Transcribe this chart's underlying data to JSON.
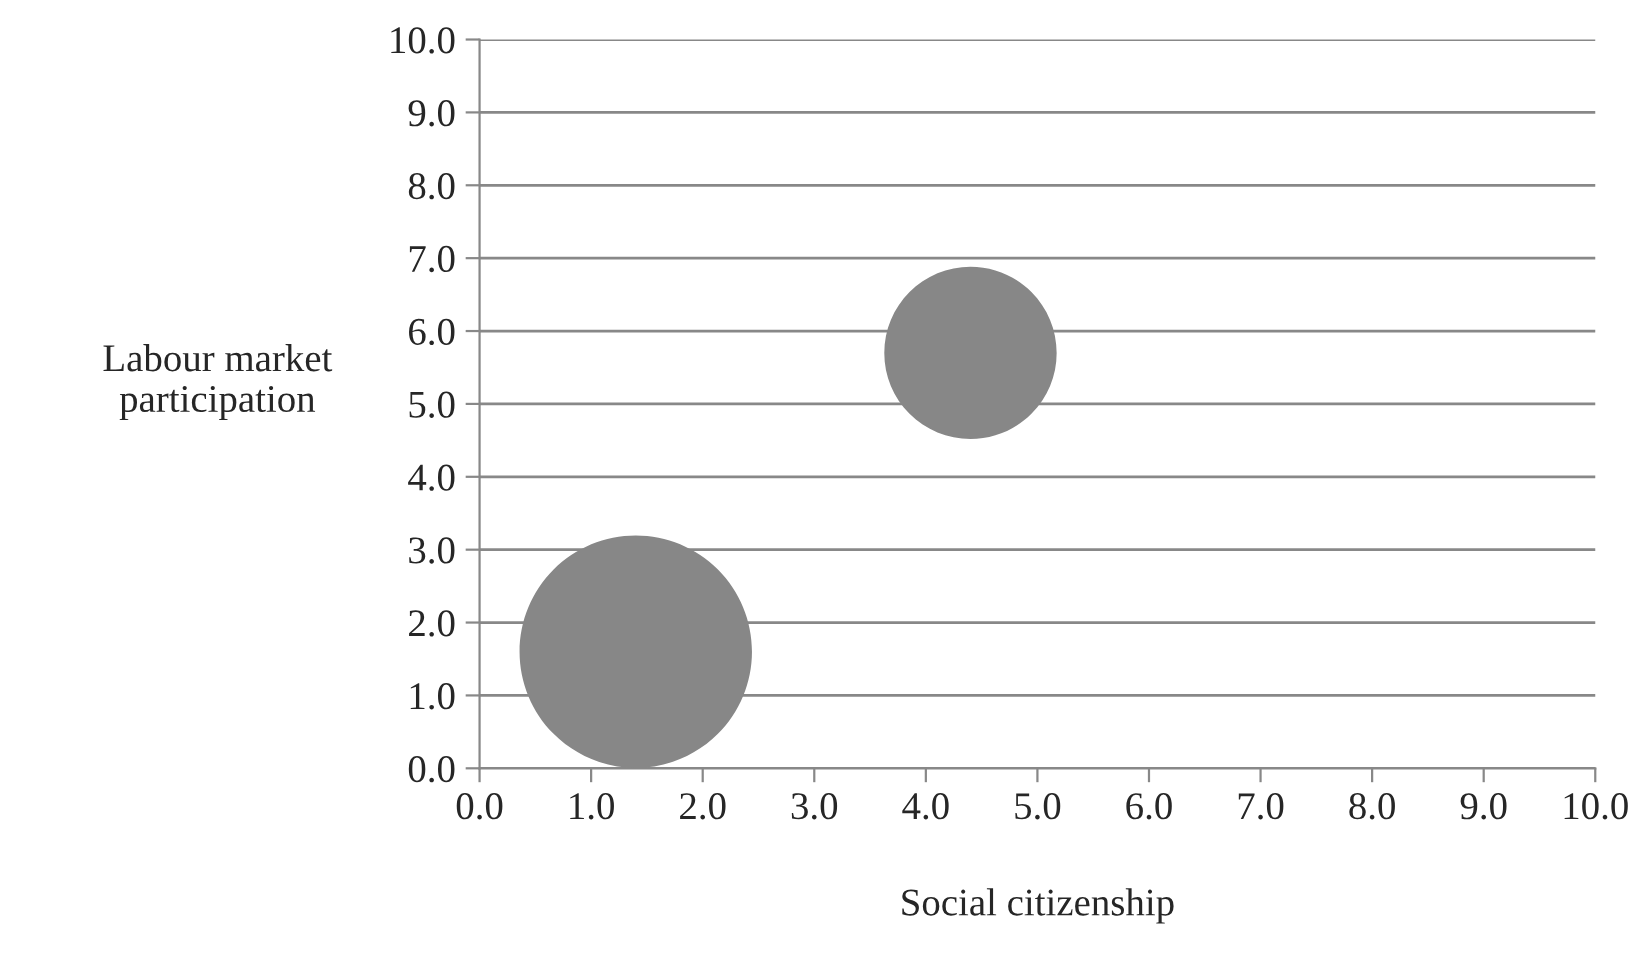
{
  "chart_data": {
    "type": "bubble",
    "xlabel": "Social citizenship",
    "ylabel": "Labour market\nparticipation",
    "x": [
      1.4,
      4.4
    ],
    "series": [
      {
        "color": "#878787",
        "values": [
          1.6,
          5.7
        ],
        "sizes": [
          1,
          0.55
        ]
      }
    ],
    "xlim": [
      0,
      10
    ],
    "ylim": [
      0,
      10
    ],
    "xticks": [
      {
        "value": 0,
        "label": "0.0"
      },
      {
        "value": 1,
        "label": "1.0"
      },
      {
        "value": 2,
        "label": "2.0"
      },
      {
        "value": 3,
        "label": "3.0"
      },
      {
        "value": 4,
        "label": "4.0"
      },
      {
        "value": 5,
        "label": "5.0"
      },
      {
        "value": 6,
        "label": "6.0"
      },
      {
        "value": 7,
        "label": "7.0"
      },
      {
        "value": 8,
        "label": "8.0"
      },
      {
        "value": 9,
        "label": "9.0"
      },
      {
        "value": 10,
        "label": "10.0"
      }
    ],
    "yticks": [
      {
        "value": 0,
        "label": "0.0"
      },
      {
        "value": 1,
        "label": "1.0"
      },
      {
        "value": 2,
        "label": "2.0"
      },
      {
        "value": 3,
        "label": "3.0"
      },
      {
        "value": 4,
        "label": "4.0"
      },
      {
        "value": 5,
        "label": "5.0"
      },
      {
        "value": 6,
        "label": "6.0"
      },
      {
        "value": 7,
        "label": "7.0"
      },
      {
        "value": 8,
        "label": "8.0"
      },
      {
        "value": 9,
        "label": "9.0"
      },
      {
        "value": 10,
        "label": "10.0"
      }
    ],
    "grid": "y",
    "legend": false
  }
}
